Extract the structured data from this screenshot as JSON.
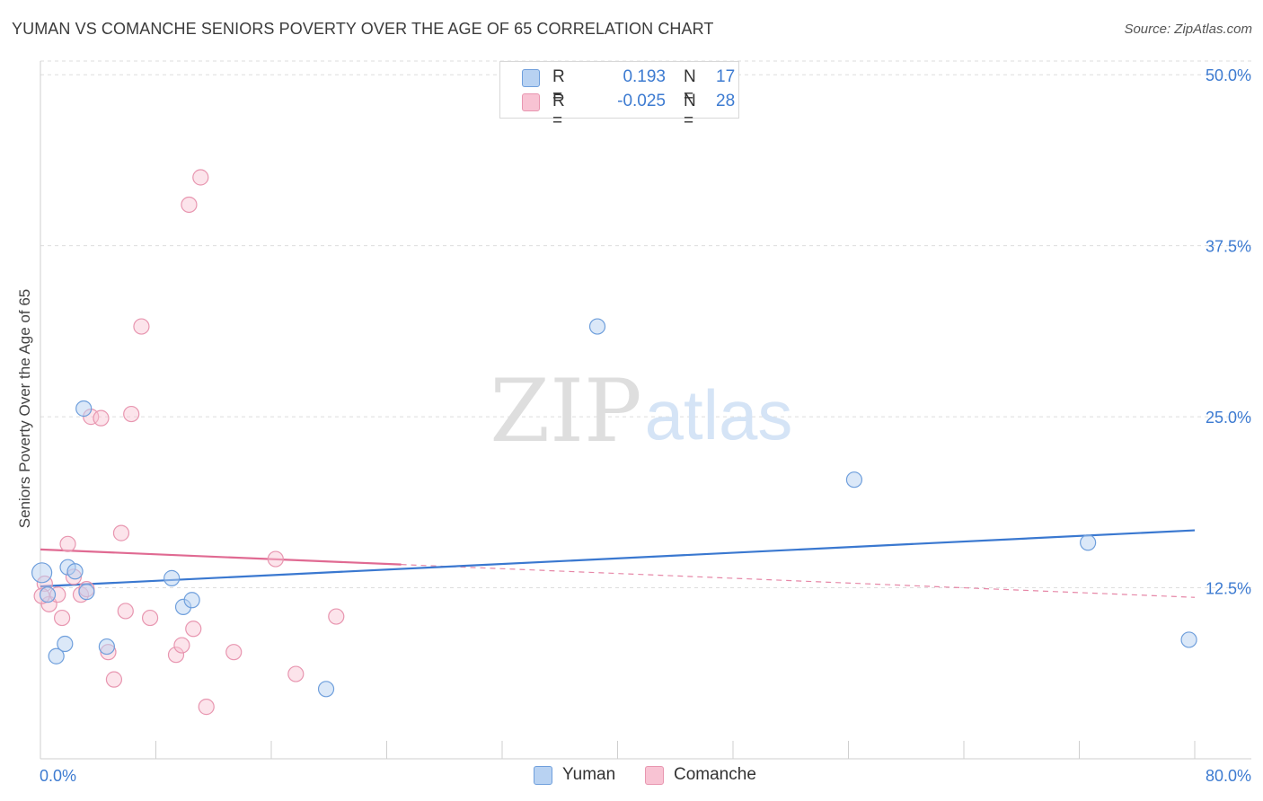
{
  "title": "YUMAN VS COMANCHE SENIORS POVERTY OVER THE AGE OF 65 CORRELATION CHART",
  "source": "Source: ZipAtlas.com",
  "watermark": {
    "zip": "ZIP",
    "atlas": "atlas"
  },
  "legend_top": {
    "rows": [
      {
        "r_label": "R =",
        "r_value": "0.193",
        "n_label": "N =",
        "n_value": "17"
      },
      {
        "r_label": "R =",
        "r_value": "-0.025",
        "n_label": "N =",
        "n_value": "28"
      }
    ]
  },
  "legend_bottom": {
    "yuman": "Yuman",
    "comanche": "Comanche"
  },
  "colors": {
    "yuman_fill": "#b8d2f2",
    "yuman_stroke": "#6f9fdc",
    "yuman_line": "#3a78d0",
    "comanche_fill": "#f8c3d3",
    "comanche_stroke": "#e896b0",
    "comanche_line": "#e06a92",
    "axis_text": "#3d7bd1",
    "grid": "#dddddd"
  },
  "chart_data": {
    "type": "scatter",
    "title": "YUMAN VS COMANCHE SENIORS POVERTY OVER THE AGE OF 65 CORRELATION CHART",
    "xlabel": "",
    "ylabel": "Seniors Poverty Over the Age of 65",
    "xlim": [
      0,
      80
    ],
    "ylim": [
      0,
      51
    ],
    "x_tick_labels": [
      "0.0%",
      "80.0%"
    ],
    "y_ticks": [
      12.5,
      25.0,
      37.5,
      50.0
    ],
    "y_tick_labels": [
      "12.5%",
      "25.0%",
      "37.5%",
      "50.0%"
    ],
    "grid": true,
    "series": [
      {
        "name": "Yuman",
        "r": 0.193,
        "n": 17,
        "points": [
          [
            0.1,
            13.6
          ],
          [
            0.5,
            12.0
          ],
          [
            1.1,
            7.5
          ],
          [
            1.7,
            8.4
          ],
          [
            1.9,
            14.0
          ],
          [
            2.4,
            13.7
          ],
          [
            3.0,
            25.6
          ],
          [
            3.2,
            12.2
          ],
          [
            4.6,
            8.2
          ],
          [
            9.1,
            13.2
          ],
          [
            9.9,
            11.1
          ],
          [
            10.5,
            11.6
          ],
          [
            19.8,
            5.1
          ],
          [
            38.6,
            31.6
          ],
          [
            56.4,
            20.4
          ],
          [
            72.6,
            15.8
          ],
          [
            79.6,
            8.7
          ]
        ],
        "trend": {
          "x": [
            0,
            80
          ],
          "y": [
            12.6,
            16.7
          ]
        }
      },
      {
        "name": "Comanche",
        "r": -0.025,
        "n": 28,
        "points": [
          [
            0.3,
            12.8
          ],
          [
            0.6,
            11.3
          ],
          [
            1.2,
            12.0
          ],
          [
            1.5,
            10.3
          ],
          [
            1.9,
            15.7
          ],
          [
            2.3,
            13.3
          ],
          [
            2.8,
            12.0
          ],
          [
            3.2,
            12.4
          ],
          [
            3.5,
            25.0
          ],
          [
            4.2,
            24.9
          ],
          [
            4.7,
            7.8
          ],
          [
            5.1,
            5.8
          ],
          [
            5.6,
            16.5
          ],
          [
            5.9,
            10.8
          ],
          [
            6.3,
            25.2
          ],
          [
            7.0,
            31.6
          ],
          [
            7.6,
            10.3
          ],
          [
            9.4,
            7.6
          ],
          [
            9.8,
            8.3
          ],
          [
            10.3,
            40.5
          ],
          [
            10.6,
            9.5
          ],
          [
            11.1,
            42.5
          ],
          [
            11.5,
            3.8
          ],
          [
            13.4,
            7.8
          ],
          [
            16.3,
            14.6
          ],
          [
            17.7,
            6.2
          ],
          [
            20.5,
            10.4
          ],
          [
            0.1,
            11.9
          ]
        ],
        "trend": {
          "x": [
            0,
            25
          ],
          "y": [
            15.3,
            14.2
          ]
        },
        "trend_extension": {
          "x": [
            25,
            80
          ],
          "y": [
            14.2,
            11.8
          ]
        }
      }
    ]
  }
}
